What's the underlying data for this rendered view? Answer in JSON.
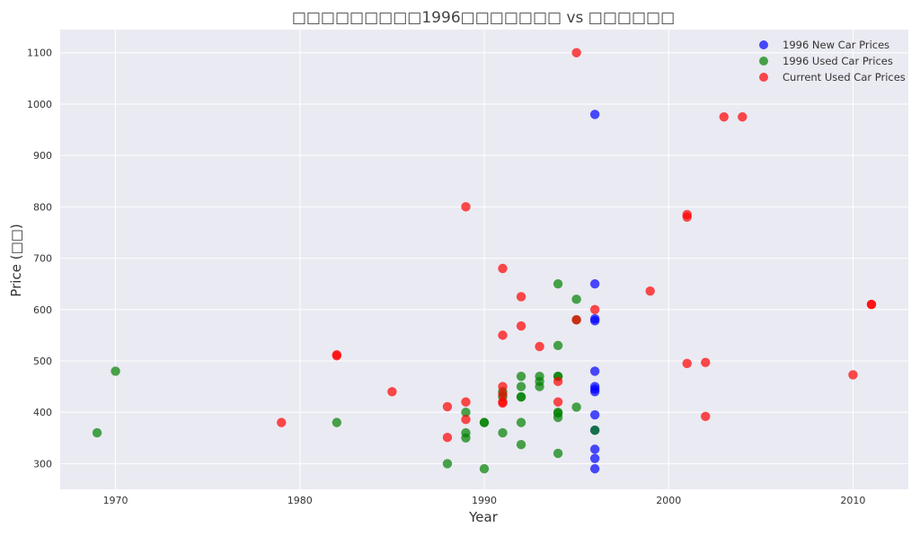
{
  "chart_data": {
    "type": "scatter",
    "title": "□□□□□□□□□1996□□□□□□□ vs □□□□□□",
    "xlabel": "Year",
    "ylabel": "Price (□□)",
    "xlim": [
      1967,
      2013
    ],
    "ylim": [
      250,
      1145
    ],
    "x_ticks": [
      1970,
      1980,
      1990,
      2000,
      2010
    ],
    "y_ticks": [
      300,
      400,
      500,
      600,
      700,
      800,
      900,
      1000,
      1100
    ],
    "grid": true,
    "legend_position": "top-right",
    "series": [
      {
        "name": "1996 New Car Prices",
        "color": "#0000ff",
        "points": [
          [
            1996,
            980
          ],
          [
            1996,
            650
          ],
          [
            1996,
            582
          ],
          [
            1996,
            578
          ],
          [
            1996,
            480
          ],
          [
            1996,
            450
          ],
          [
            1996,
            445
          ],
          [
            1996,
            440
          ],
          [
            1996,
            395
          ],
          [
            1996,
            365
          ],
          [
            1996,
            328
          ],
          [
            1996,
            310
          ],
          [
            1996,
            290
          ]
        ]
      },
      {
        "name": "1996 Used Car Prices",
        "color": "#008000",
        "points": [
          [
            1969,
            360
          ],
          [
            1970,
            480
          ],
          [
            1982,
            380
          ],
          [
            1988,
            300
          ],
          [
            1989,
            400
          ],
          [
            1989,
            360
          ],
          [
            1989,
            350
          ],
          [
            1990,
            380
          ],
          [
            1990,
            380
          ],
          [
            1990,
            290
          ],
          [
            1991,
            440
          ],
          [
            1991,
            430
          ],
          [
            1991,
            360
          ],
          [
            1992,
            470
          ],
          [
            1992,
            450
          ],
          [
            1992,
            430
          ],
          [
            1992,
            430
          ],
          [
            1992,
            380
          ],
          [
            1992,
            337
          ],
          [
            1993,
            470
          ],
          [
            1993,
            460
          ],
          [
            1993,
            450
          ],
          [
            1994,
            650
          ],
          [
            1994,
            530
          ],
          [
            1994,
            470
          ],
          [
            1994,
            470
          ],
          [
            1994,
            400
          ],
          [
            1994,
            398
          ],
          [
            1994,
            390
          ],
          [
            1994,
            320
          ],
          [
            1995,
            620
          ],
          [
            1995,
            580
          ],
          [
            1995,
            410
          ],
          [
            1996,
            365
          ]
        ]
      },
      {
        "name": "Current Used Car Prices",
        "color": "#ff0000",
        "points": [
          [
            1979,
            380
          ],
          [
            1982,
            512
          ],
          [
            1982,
            510
          ],
          [
            1985,
            440
          ],
          [
            1988,
            411
          ],
          [
            1988,
            351
          ],
          [
            1989,
            800
          ],
          [
            1989,
            420
          ],
          [
            1989,
            386
          ],
          [
            1991,
            680
          ],
          [
            1991,
            550
          ],
          [
            1991,
            450
          ],
          [
            1991,
            435
          ],
          [
            1991,
            420
          ],
          [
            1991,
            418
          ],
          [
            1992,
            625
          ],
          [
            1992,
            568
          ],
          [
            1993,
            528
          ],
          [
            1994,
            460
          ],
          [
            1994,
            420
          ],
          [
            1995,
            1100
          ],
          [
            1995,
            580
          ],
          [
            1996,
            600
          ],
          [
            1999,
            636
          ],
          [
            2001,
            785
          ],
          [
            2001,
            780
          ],
          [
            2001,
            495
          ],
          [
            2002,
            497
          ],
          [
            2002,
            392
          ],
          [
            2003,
            975
          ],
          [
            2004,
            975
          ],
          [
            2010,
            473
          ],
          [
            2011,
            610
          ],
          [
            2011,
            610
          ]
        ]
      }
    ]
  }
}
